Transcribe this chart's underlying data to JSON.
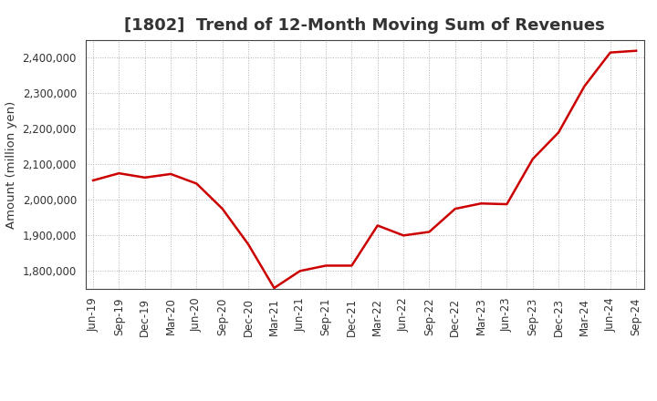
{
  "title": "[1802]  Trend of 12-Month Moving Sum of Revenues",
  "ylabel": "Amount (million yen)",
  "background_color": "#ffffff",
  "grid_color": "#aaaaaa",
  "line_color": "#cc0000",
  "x_labels": [
    "Jun-19",
    "Sep-19",
    "Dec-19",
    "Mar-20",
    "Jun-20",
    "Sep-20",
    "Dec-20",
    "Mar-21",
    "Jun-21",
    "Sep-21",
    "Dec-21",
    "Mar-22",
    "Jun-22",
    "Sep-22",
    "Dec-22",
    "Mar-23",
    "Jun-23",
    "Sep-23",
    "Dec-23",
    "Mar-24",
    "Jun-24",
    "Sep-24"
  ],
  "y_values": [
    2055000,
    2075000,
    2063000,
    2073000,
    2046000,
    1975000,
    1875000,
    1752000,
    1800000,
    1815000,
    1815000,
    1928000,
    1900000,
    1910000,
    1975000,
    1990000,
    1988000,
    2115000,
    2190000,
    2320000,
    2415000,
    2420000
  ],
  "ylim": [
    1750000,
    2450000
  ],
  "yticks": [
    1800000,
    1900000,
    2000000,
    2100000,
    2200000,
    2300000,
    2400000
  ],
  "title_fontsize": 13,
  "label_fontsize": 9.5,
  "tick_fontsize": 8.5
}
